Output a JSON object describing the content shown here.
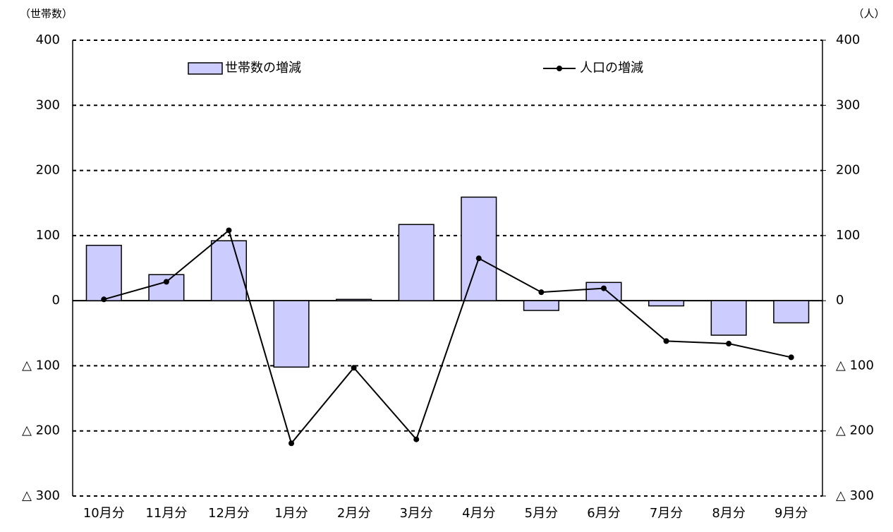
{
  "chart_data": {
    "type": "bar",
    "y_label": "（世帯数）",
    "y2_label": "（人）",
    "categories": [
      "10月分",
      "11月分",
      "12月分",
      "1月分",
      "2月分",
      "3月分",
      "4月分",
      "5月分",
      "6月分",
      "7月分",
      "8月分",
      "9月分"
    ],
    "series": [
      {
        "name": "世帯数の増減",
        "type": "bar",
        "color": "#ccccff",
        "values": [
          85,
          40,
          92,
          -102,
          2,
          117,
          159,
          -15,
          28,
          -8,
          -53,
          -34
        ]
      },
      {
        "name": "人口の増減",
        "type": "line",
        "axis": "y2",
        "color": "#000000",
        "values": [
          2,
          29,
          108,
          -219,
          -103,
          -213,
          65,
          13,
          19,
          -62,
          -66,
          -87
        ]
      }
    ],
    "ylim": [
      -300,
      400
    ],
    "yticks": [
      {
        "value": -300,
        "label": "△ 300"
      },
      {
        "value": -200,
        "label": "△ 200"
      },
      {
        "value": -100,
        "label": "△ 100"
      },
      0,
      100,
      200,
      300,
      400
    ],
    "y2lim": [
      -300,
      400
    ],
    "y2ticks": [
      {
        "value": -300,
        "label": "△ 300"
      },
      {
        "value": -200,
        "label": "△ 200"
      },
      {
        "value": -100,
        "label": "△ 100"
      },
      0,
      100,
      200,
      300,
      400
    ],
    "grid": true
  }
}
